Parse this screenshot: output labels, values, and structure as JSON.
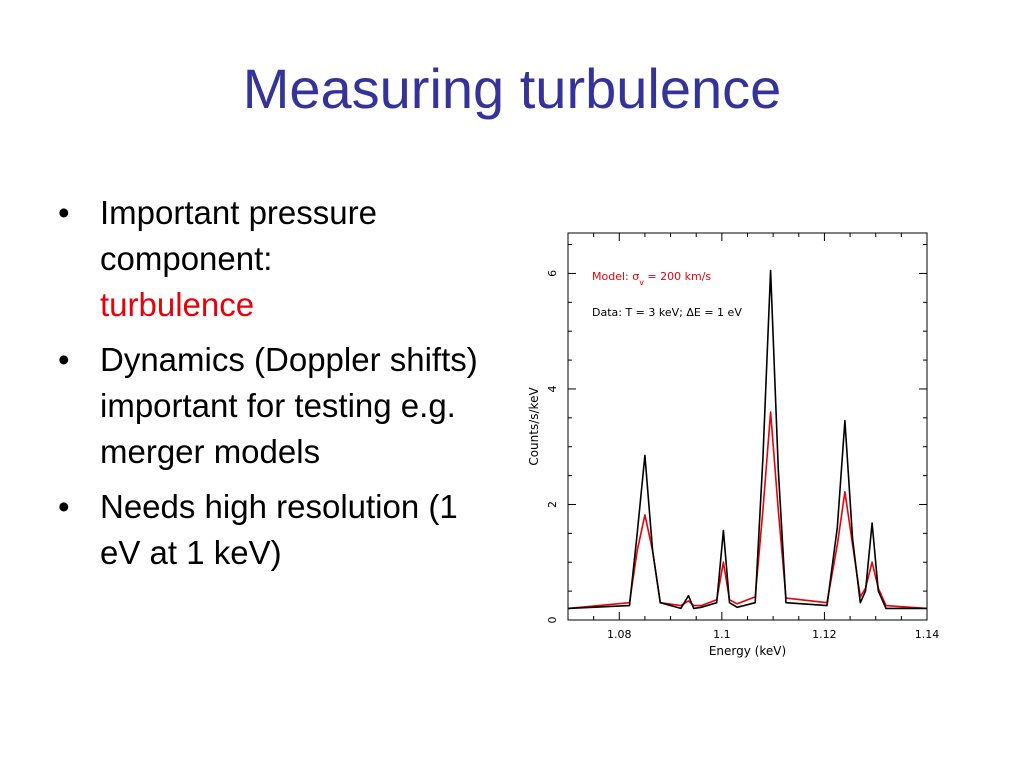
{
  "slide": {
    "title": "Measuring turbulence",
    "bullets": [
      {
        "text": "Important pressure component:",
        "highlight": "turbulence",
        "highlight_color": "#e8000a"
      },
      {
        "text": "Dynamics (Doppler shifts) important for testing e.g. merger models"
      },
      {
        "text": "Needs high resolution (1 eV at 1 keV)"
      }
    ],
    "bullet_glyph": "•",
    "title_color": "#333399"
  },
  "chart_data": {
    "type": "line",
    "xlabel": "Energy (keV)",
    "ylabel": "Counts/s/keV",
    "xlim": [
      1.07,
      1.14
    ],
    "ylim": [
      0,
      6.7
    ],
    "x_ticks": [
      "1.08",
      "1.1",
      "1.12",
      "1.14"
    ],
    "x_tick_values": [
      1.08,
      1.1,
      1.12,
      1.14
    ],
    "y_ticks": [
      "0",
      "2",
      "4",
      "6"
    ],
    "y_tick_values": [
      0,
      2,
      4,
      6
    ],
    "grid": false,
    "annotations": [
      {
        "text": "Model: σ",
        "sub": "v",
        "rest": " = 200 km/s",
        "color": "#e8000a"
      },
      {
        "text": "Data: T = 3 keV; ΔE = 1 eV",
        "color": "#000000"
      }
    ],
    "series": [
      {
        "color": "#e8000a",
        "x": [
          1.07,
          1.082,
          1.0835,
          1.085,
          1.0865,
          1.088,
          1.092,
          1.0935,
          1.0945,
          1.096,
          1.099,
          1.1003,
          1.1015,
          1.103,
          1.1065,
          1.108,
          1.1095,
          1.111,
          1.1125,
          1.1205,
          1.1225,
          1.124,
          1.1255,
          1.127,
          1.128,
          1.1293,
          1.1305,
          1.132,
          1.14
        ],
        "y": [
          0.2,
          0.3,
          1.2,
          1.82,
          1.2,
          0.3,
          0.25,
          0.33,
          0.25,
          0.25,
          0.35,
          1.0,
          0.35,
          0.28,
          0.4,
          1.9,
          3.6,
          1.9,
          0.38,
          0.3,
          1.3,
          2.22,
          1.3,
          0.4,
          0.55,
          1.0,
          0.55,
          0.25,
          0.2
        ]
      },
      {
        "color": "#000000",
        "x": [
          1.07,
          1.082,
          1.0835,
          1.085,
          1.0865,
          1.088,
          1.092,
          1.0935,
          1.0945,
          1.096,
          1.099,
          1.1003,
          1.1015,
          1.103,
          1.1065,
          1.108,
          1.1095,
          1.111,
          1.1125,
          1.1205,
          1.1225,
          1.124,
          1.1255,
          1.127,
          1.128,
          1.1293,
          1.1305,
          1.132,
          1.14
        ],
        "y": [
          0.2,
          0.25,
          1.5,
          2.85,
          1.2,
          0.3,
          0.2,
          0.42,
          0.2,
          0.22,
          0.3,
          1.55,
          0.3,
          0.22,
          0.3,
          2.8,
          6.05,
          2.6,
          0.3,
          0.25,
          1.6,
          3.45,
          1.4,
          0.3,
          0.5,
          1.68,
          0.5,
          0.2,
          0.2
        ]
      }
    ]
  }
}
